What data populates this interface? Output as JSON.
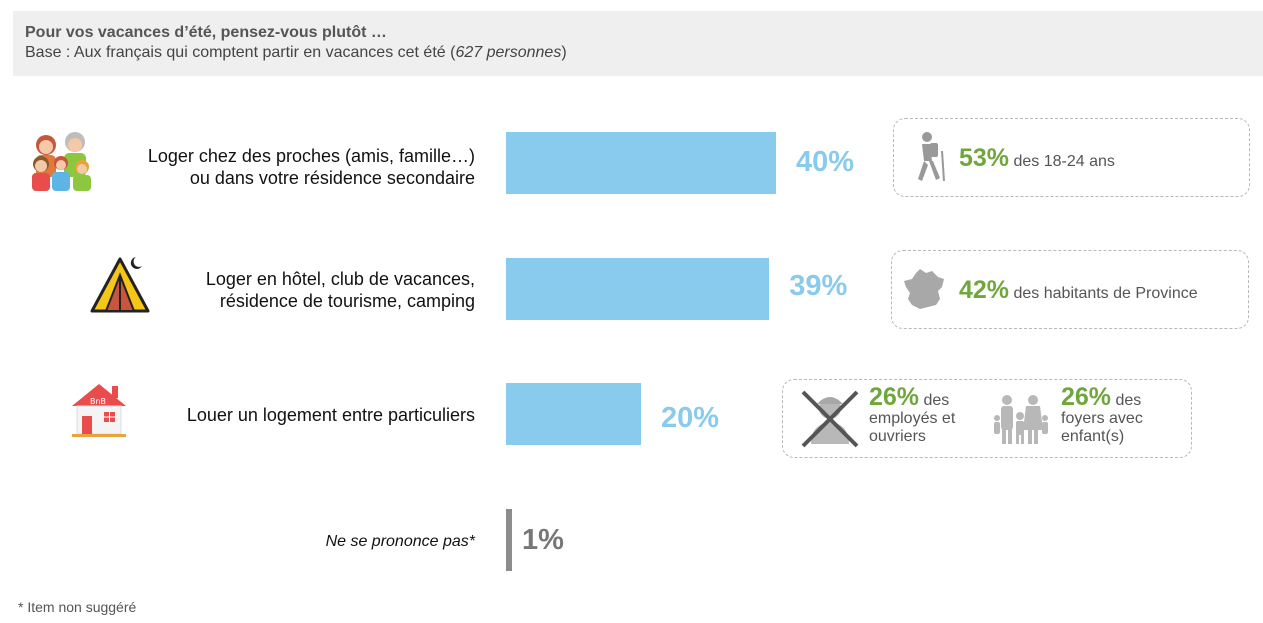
{
  "header": {
    "title": "Pour vos vacances d’été, pensez-vous plutôt …",
    "subtitle_prefix": "Base : Aux français qui comptent partir en vacances cet été (",
    "subtitle_italic": "627 personnes",
    "subtitle_suffix": ")"
  },
  "chart_data": {
    "type": "bar",
    "orientation": "horizontal",
    "categories": [
      "Loger chez des proches (amis, famille…)\nou dans votre résidence secondaire",
      "Loger en hôtel, club de vacances,\nrésidence de tourisme, camping",
      "Louer un logement entre particuliers",
      "Ne se prononce pas*"
    ],
    "values": [
      40,
      39,
      20,
      1
    ],
    "value_labels": [
      "40%",
      "39%",
      "20%",
      "1%"
    ],
    "unit": "%",
    "grid": false,
    "colors": {
      "bar": "#88cbec",
      "nsp_bar": "#8c8c8c"
    }
  },
  "callouts": [
    {
      "items": [
        {
          "pct": "53%",
          "text": "des 18-24 ans"
        }
      ]
    },
    {
      "items": [
        {
          "pct": "42%",
          "text": "des habitants de Province"
        }
      ]
    },
    {
      "items": [
        {
          "pct": "26%",
          "text_1": "des",
          "text_2": "employés et",
          "text_3": "ouvriers"
        },
        {
          "pct": "26%",
          "text_1": "des",
          "text_2": "foyers avec",
          "text_3": "enfant(s)"
        }
      ]
    }
  ],
  "icons": {
    "row1": "family-icon",
    "row2": "tent-icon",
    "row3": "bnb-house-icon",
    "callout1": "hiker-icon",
    "callout2": "france-map-icon",
    "callout3a": "worker-crossed-icon",
    "callout3b": "family-silhouette-icon"
  },
  "colors": {
    "highlight_green": "#6fa73c",
    "header_bg": "#efefef"
  },
  "footnote": "* Item non suggéré"
}
